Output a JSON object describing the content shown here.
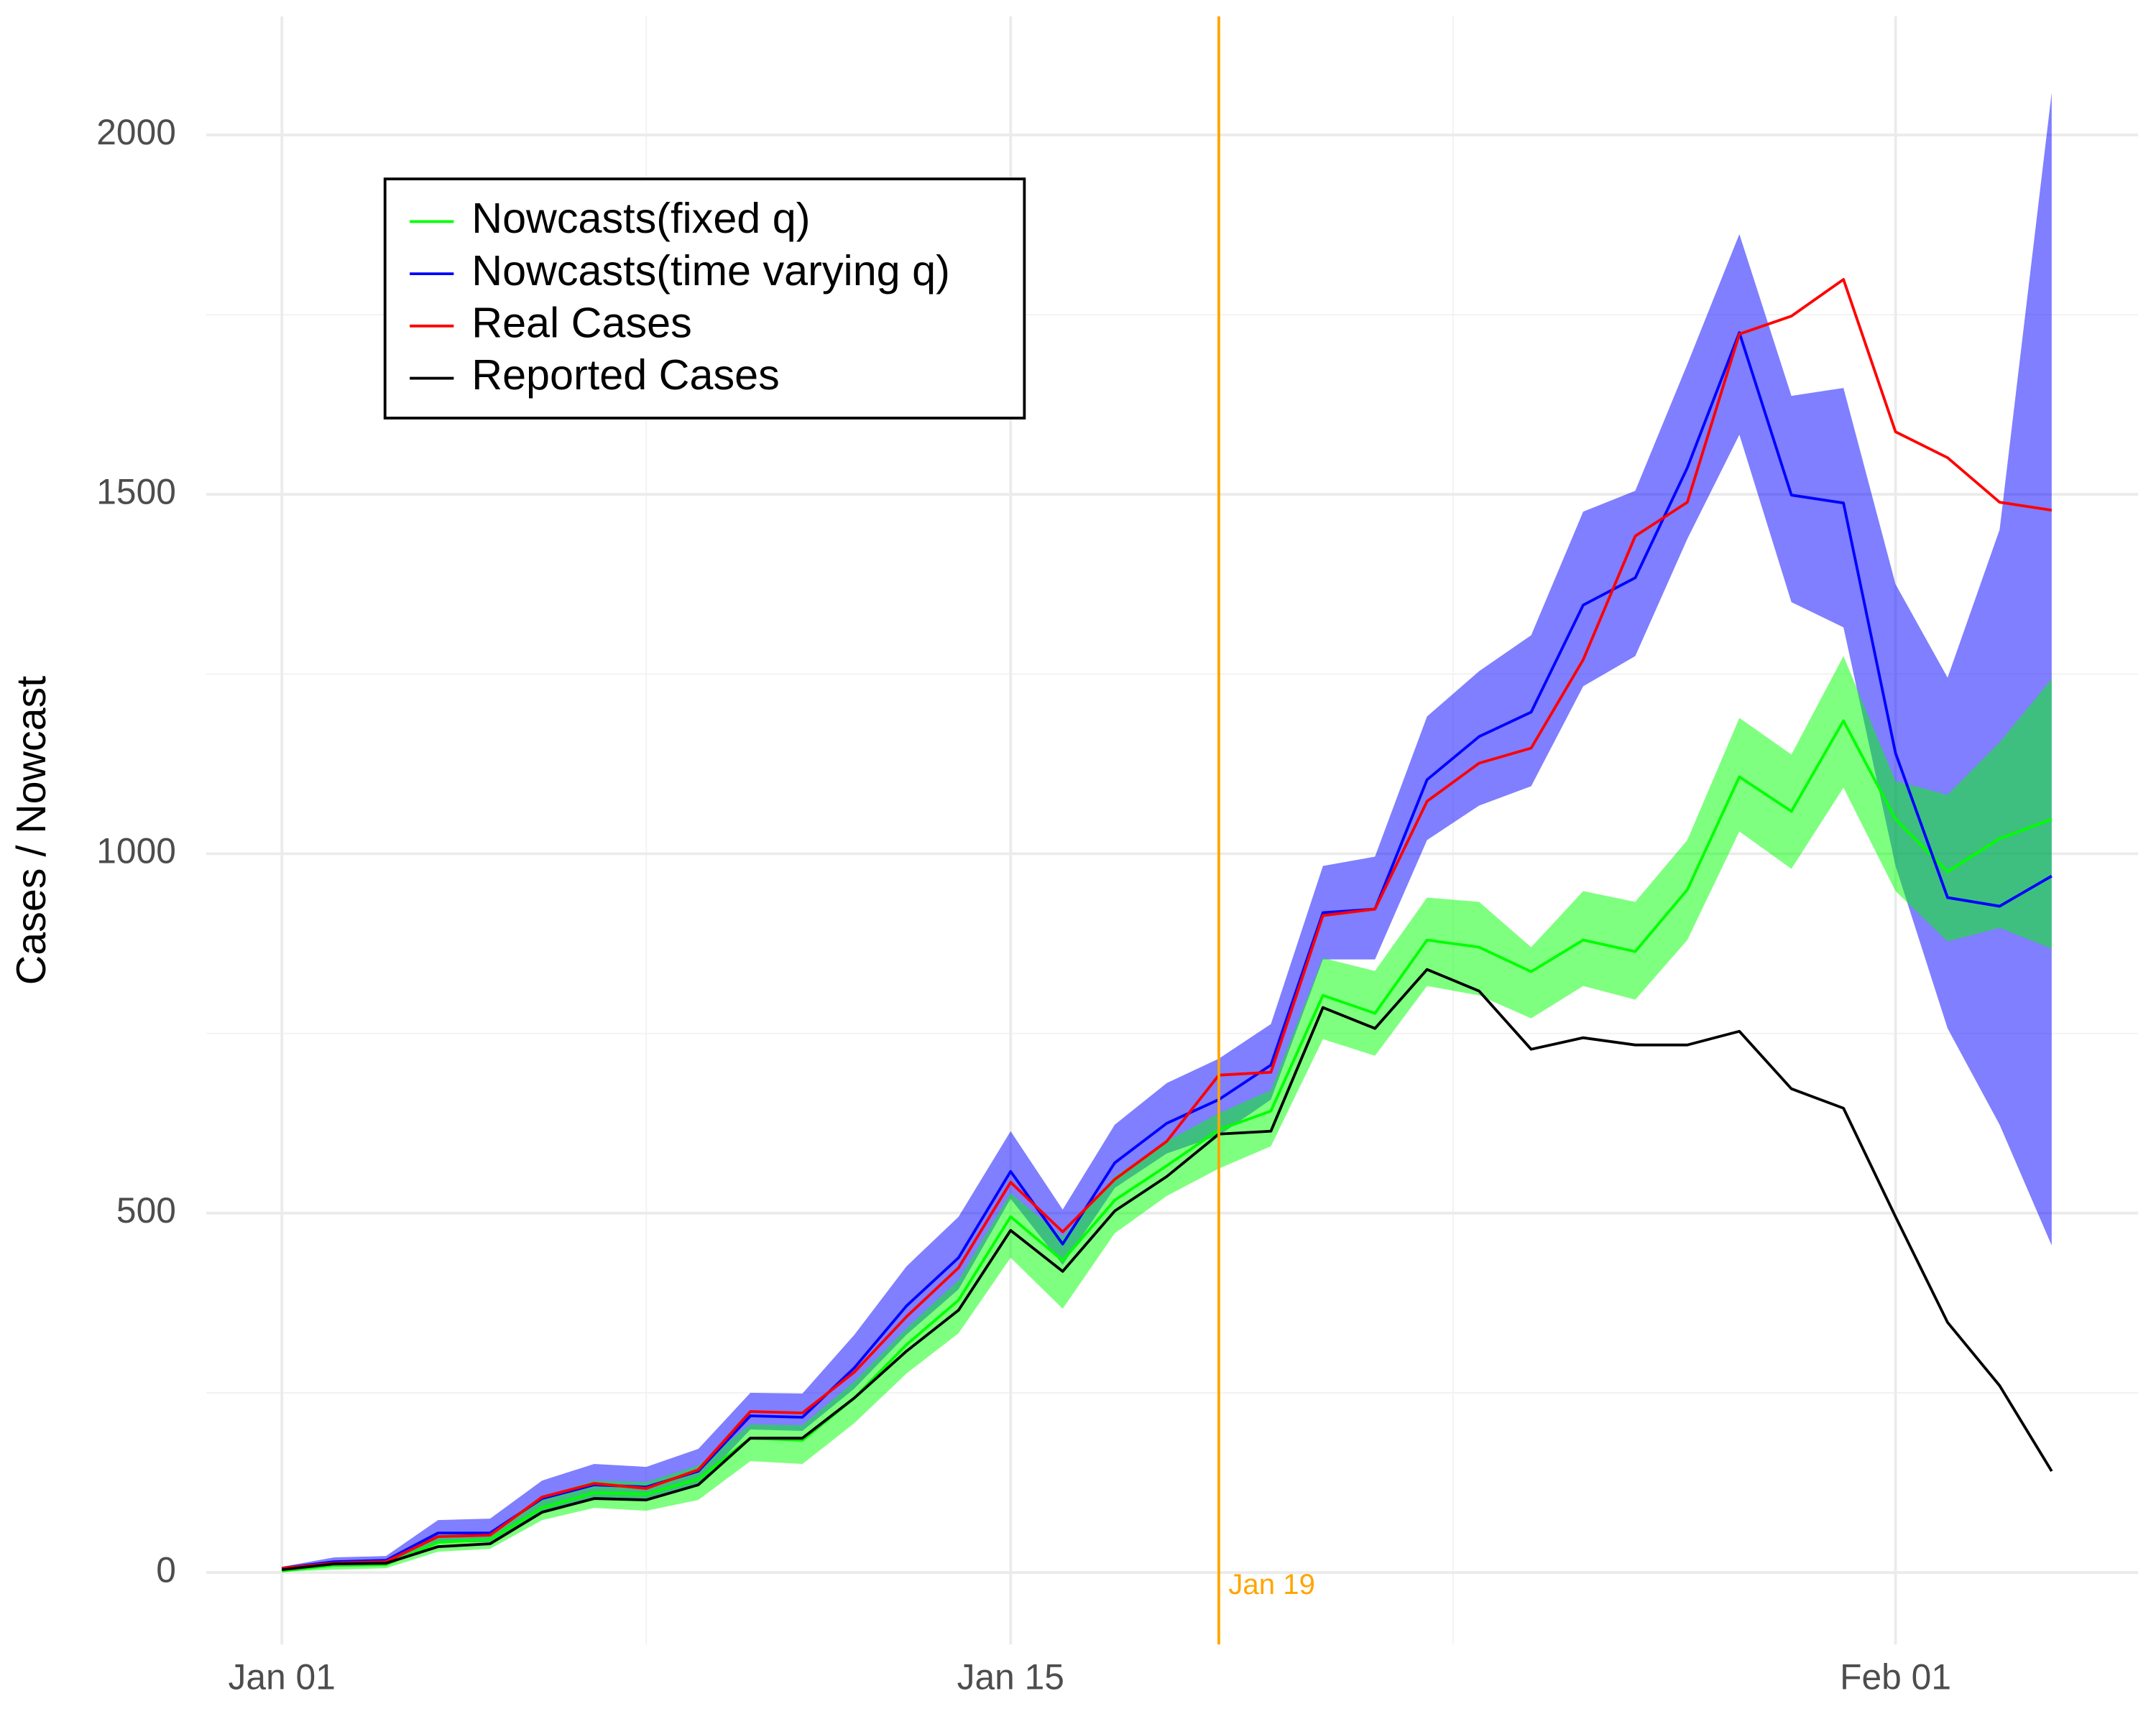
{
  "chart_data": {
    "type": "line",
    "y_label": "Cases / Nowcast",
    "x": [
      "Jan 01",
      "Jan 02",
      "Jan 03",
      "Jan 04",
      "Jan 05",
      "Jan 06",
      "Jan 07",
      "Jan 08",
      "Jan 09",
      "Jan 10",
      "Jan 11",
      "Jan 12",
      "Jan 13",
      "Jan 14",
      "Jan 15",
      "Jan 16",
      "Jan 17",
      "Jan 18",
      "Jan 19",
      "Jan 20",
      "Jan 21",
      "Jan 22",
      "Jan 23",
      "Jan 24",
      "Jan 25",
      "Jan 26",
      "Jan 27",
      "Jan 28",
      "Jan 29",
      "Jan 30",
      "Jan 31",
      "Feb 01",
      "Feb 02",
      "Feb 03",
      "Feb 04"
    ],
    "xticks": [
      "Jan 01",
      "Jan 15",
      "Feb 01"
    ],
    "ylim": [
      -100,
      2165
    ],
    "yticks": [
      0,
      500,
      1000,
      1500,
      2000
    ],
    "grid": true,
    "legend": "top-left",
    "vline": {
      "x": "Jan 19",
      "label": "Jan 19",
      "color": "#ffa500"
    },
    "series": [
      {
        "name": "Nowcasts(fixed q)",
        "color": "#00ff00",
        "values": [
          2,
          10,
          11,
          42,
          46,
          90,
          111,
          109,
          130,
          187,
          184,
          243,
          317,
          379,
          495,
          434,
          518,
          566,
          616,
          642,
          803,
          778,
          880,
          870,
          836,
          880,
          864,
          950,
          1107,
          1059,
          1185,
          1048,
          975,
          1021,
          1048
        ],
        "upper": [
          3,
          15,
          17,
          52,
          57,
          105,
          128,
          126,
          149,
          206,
          205,
          266,
          340,
          407,
          528,
          467,
          551,
          600,
          639,
          671,
          855,
          837,
          939,
          933,
          870,
          948,
          933,
          1019,
          1189,
          1138,
          1275,
          1101,
          1082,
          1155,
          1243
        ],
        "lower": [
          1,
          4,
          6,
          29,
          33,
          73,
          90,
          86,
          101,
          155,
          151,
          208,
          277,
          333,
          438,
          367,
          472,
          524,
          562,
          593,
          742,
          719,
          816,
          803,
          771,
          816,
          797,
          880,
          1031,
          979,
          1092,
          948,
          878,
          897,
          868
        ]
      },
      {
        "name": "Nowcasts(time varying q)",
        "color": "#0000ff",
        "values": [
          6,
          15,
          17,
          55,
          55,
          103,
          122,
          119,
          141,
          218,
          216,
          285,
          371,
          438,
          558,
          457,
          570,
          625,
          658,
          706,
          918,
          923,
          1103,
          1163,
          1197,
          1346,
          1384,
          1537,
          1725,
          1499,
          1488,
          1140,
          939,
          927,
          969
        ],
        "upper": [
          8,
          21,
          23,
          73,
          75,
          128,
          151,
          147,
          172,
          250,
          249,
          331,
          426,
          495,
          614,
          505,
          623,
          681,
          715,
          763,
          983,
          996,
          1191,
          1254,
          1304,
          1476,
          1505,
          1681,
          1862,
          1637,
          1648,
          1375,
          1245,
          1451,
          2059
        ],
        "lower": [
          3,
          10,
          11,
          42,
          42,
          86,
          103,
          99,
          122,
          199,
          197,
          256,
          331,
          394,
          520,
          428,
          535,
          583,
          608,
          658,
          853,
          853,
          1019,
          1067,
          1094,
          1233,
          1275,
          1438,
          1583,
          1350,
          1315,
          983,
          757,
          623,
          455
        ]
      },
      {
        "name": "Real Cases",
        "color": "#ff0000",
        "values": [
          6,
          13,
          15,
          50,
          52,
          105,
          124,
          117,
          143,
          224,
          222,
          279,
          356,
          424,
          543,
          474,
          547,
          600,
          692,
          696,
          914,
          923,
          1073,
          1126,
          1147,
          1270,
          1442,
          1489,
          1723,
          1748,
          1799,
          1587,
          1551,
          1489,
          1478
        ]
      },
      {
        "name": "Reported Cases",
        "color": "#000000",
        "values": [
          4,
          12,
          13,
          36,
          40,
          84,
          103,
          101,
          122,
          187,
          187,
          243,
          308,
          365,
          476,
          419,
          503,
          551,
          610,
          614,
          786,
          757,
          839,
          809,
          728,
          744,
          734,
          734,
          753,
          673,
          646,
          495,
          348,
          260,
          141
        ]
      }
    ]
  }
}
